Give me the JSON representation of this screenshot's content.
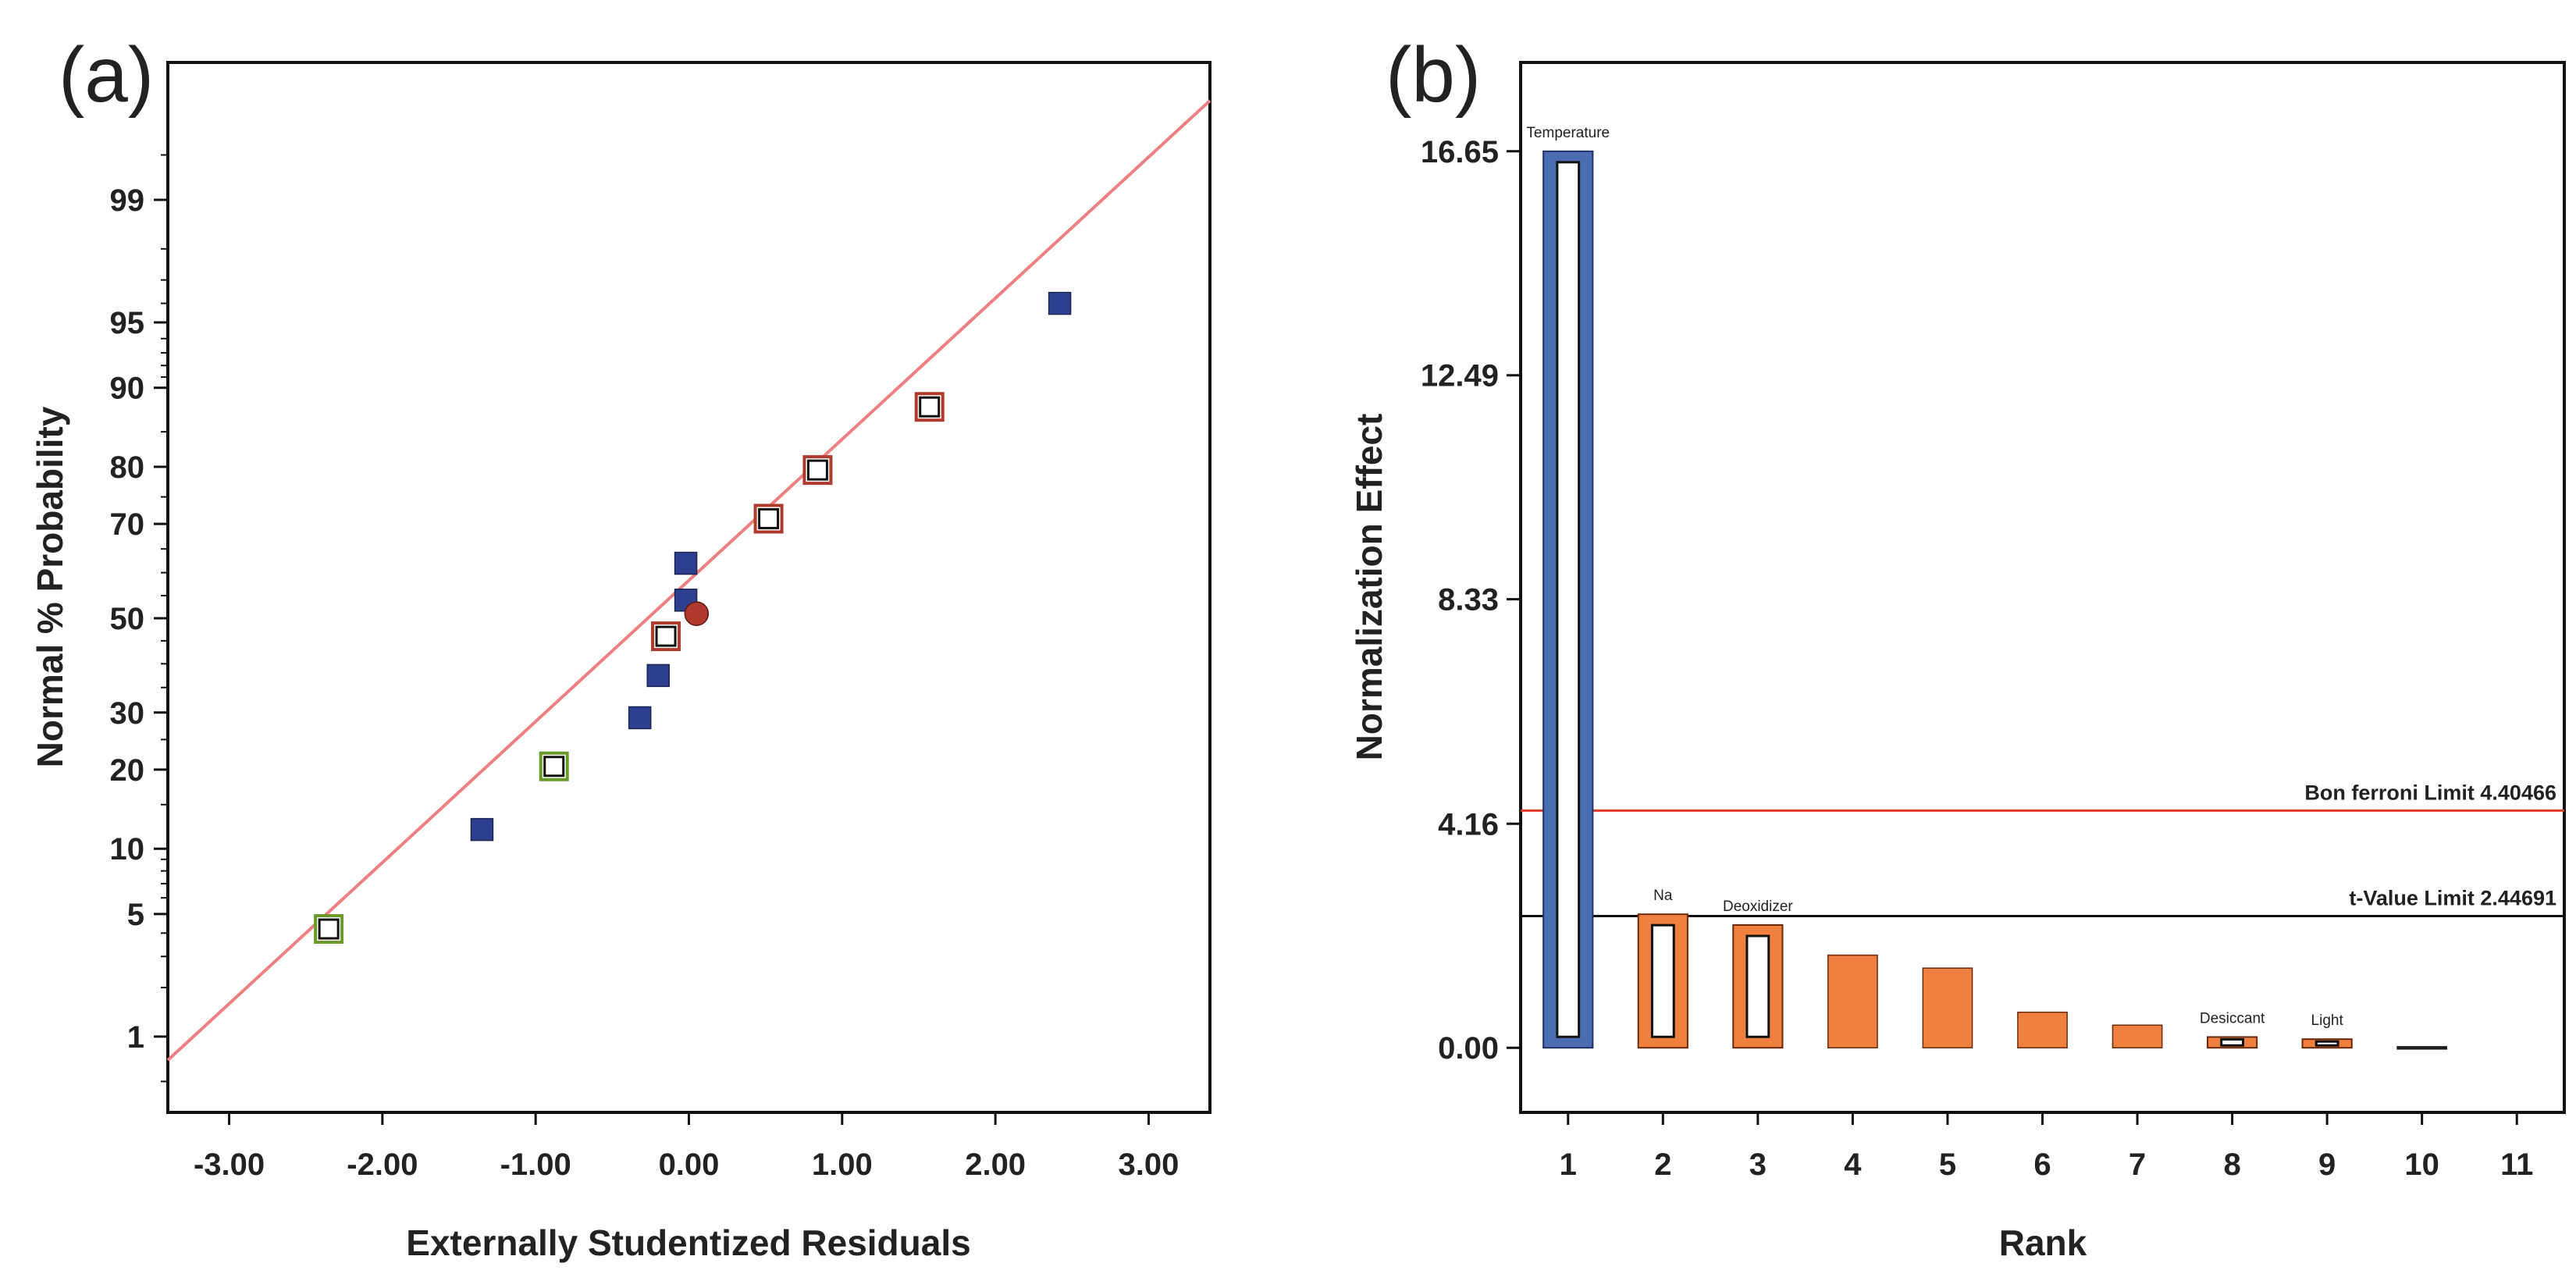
{
  "chart_data": [
    {
      "panel_label": "(a)",
      "type": "scatter",
      "xlabel": "Externally Studentized Residuals",
      "ylabel": "Normal % Probability",
      "xlim": [
        -3.4,
        3.4
      ],
      "x_ticks": [
        "-3.00",
        "-2.00",
        "-1.00",
        "0.00",
        "1.00",
        "2.00",
        "3.00"
      ],
      "x_tick_values": [
        -3,
        -2,
        -1,
        0,
        1,
        2,
        3
      ],
      "y_scale": "normal-probability",
      "ylim": [
        0.3,
        99.9
      ],
      "y_ticks": [
        "1",
        "5",
        "10",
        "20",
        "30",
        "50",
        "70",
        "80",
        "90",
        "95",
        "99"
      ],
      "y_tick_values": [
        1,
        5,
        10,
        20,
        30,
        50,
        70,
        80,
        90,
        95,
        99
      ],
      "fit_line": {
        "color": "#f08080",
        "points": [
          [
            -3.4,
            0.7
          ],
          [
            3.4,
            99.8
          ]
        ]
      },
      "points": [
        {
          "x": -2.35,
          "y": 4.2,
          "marker": "open-square",
          "color": "#6a9a2a"
        },
        {
          "x": -1.35,
          "y": 12.0,
          "marker": "filled-square",
          "color": "#2e3f8f"
        },
        {
          "x": -0.88,
          "y": 20.5,
          "marker": "open-square",
          "color": "#6a9a2a"
        },
        {
          "x": -0.32,
          "y": 29.0,
          "marker": "filled-square",
          "color": "#2e3f8f"
        },
        {
          "x": -0.2,
          "y": 37.5,
          "marker": "filled-square",
          "color": "#2e3f8f"
        },
        {
          "x": -0.15,
          "y": 46.0,
          "marker": "open-square",
          "color": "#b03a2e"
        },
        {
          "x": -0.02,
          "y": 54.0,
          "marker": "filled-square",
          "color": "#2e3f8f"
        },
        {
          "x": 0.05,
          "y": 51.0,
          "marker": "filled-circle",
          "color": "#b03a2e"
        },
        {
          "x": -0.02,
          "y": 62.0,
          "marker": "filled-square",
          "color": "#2e3f8f"
        },
        {
          "x": 0.52,
          "y": 71.0,
          "marker": "open-square",
          "color": "#b03a2e"
        },
        {
          "x": 0.84,
          "y": 79.5,
          "marker": "open-square",
          "color": "#b03a2e"
        },
        {
          "x": 1.57,
          "y": 88.0,
          "marker": "open-square",
          "color": "#b03a2e"
        },
        {
          "x": 2.42,
          "y": 96.0,
          "marker": "filled-square",
          "color": "#2e3f8f"
        }
      ],
      "grid": false
    },
    {
      "panel_label": "(b)",
      "type": "bar",
      "xlabel": "Rank",
      "ylabel": "Normalization Effect",
      "categories": [
        "1",
        "2",
        "3",
        "4",
        "5",
        "6",
        "7",
        "8",
        "9",
        "10",
        "11"
      ],
      "values": [
        16.65,
        2.48,
        2.28,
        1.72,
        1.48,
        0.66,
        0.42,
        0.2,
        0.16,
        0.02,
        0
      ],
      "bar_colors": [
        "#4a6cb0",
        "#f08040",
        "#f08040",
        "#f08040",
        "#f08040",
        "#f08040",
        "#f08040",
        "#f08040",
        "#f08040",
        "#1f1f1f",
        "#f08040"
      ],
      "bar_outlined": [
        true,
        true,
        true,
        false,
        false,
        false,
        false,
        true,
        true,
        false,
        false
      ],
      "bar_labels": [
        "Temperature",
        "Na",
        "Deoxidizer",
        "",
        "",
        "",
        "",
        "Desiccant",
        "Light",
        "",
        ""
      ],
      "ylim": [
        -1.2,
        18.3
      ],
      "y_ticks": [
        "0.00",
        "4.16",
        "8.33",
        "12.49",
        "16.65"
      ],
      "y_tick_values": [
        0,
        4.16,
        8.33,
        12.49,
        16.65
      ],
      "limits": [
        {
          "label": "Bon ferroni Limit 4.40466",
          "value": 4.40466,
          "color": "#e33a2a"
        },
        {
          "label": "t-Value Limit 2.44691",
          "value": 2.44691,
          "color": "#111111"
        }
      ],
      "grid": false
    }
  ]
}
